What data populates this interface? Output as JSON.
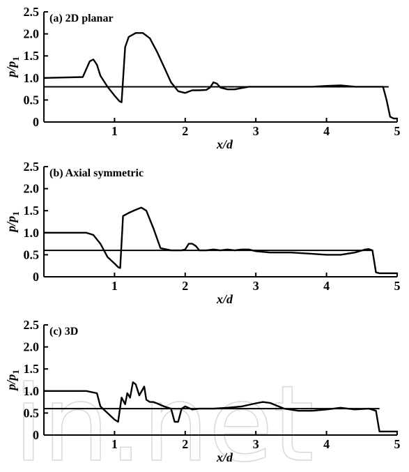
{
  "watermark": "in.net",
  "chart_data": [
    {
      "type": "line",
      "title": "(a) 2D planar",
      "xlabel": "x/d",
      "ylabel": "p/p1",
      "xlim": [
        0,
        5
      ],
      "ylim": [
        0,
        2.5
      ],
      "xticks": [
        "1",
        "2",
        "3",
        "4",
        "5"
      ],
      "yticks": [
        "0",
        "0.5",
        "1.0",
        "1.5",
        "2.0",
        "2.5"
      ],
      "grid": false,
      "reference_line": {
        "y": 0.8,
        "x_range": [
          0,
          4.88
        ]
      },
      "series": [
        {
          "x": [
            0,
            0.55,
            0.6,
            0.65,
            0.7,
            0.75,
            0.8,
            0.9,
            1.0,
            1.07,
            1.1,
            1.15,
            1.2,
            1.3,
            1.4,
            1.5,
            1.6,
            1.7,
            1.8,
            1.9,
            2.0,
            2.1,
            2.2,
            2.3,
            2.35,
            2.4,
            2.45,
            2.5,
            2.6,
            2.7,
            2.8,
            2.9,
            3.0,
            3.2,
            3.4,
            3.6,
            3.8,
            4.0,
            4.2,
            4.4,
            4.6,
            4.8,
            4.85,
            4.9,
            4.95,
            5.0
          ],
          "y": [
            1.0,
            1.02,
            1.2,
            1.38,
            1.42,
            1.3,
            1.05,
            0.8,
            0.6,
            0.47,
            0.45,
            1.7,
            1.93,
            2.02,
            2.02,
            1.9,
            1.6,
            1.25,
            0.9,
            0.7,
            0.66,
            0.72,
            0.72,
            0.73,
            0.78,
            0.9,
            0.87,
            0.78,
            0.74,
            0.74,
            0.77,
            0.8,
            0.8,
            0.8,
            0.8,
            0.8,
            0.8,
            0.82,
            0.83,
            0.8,
            0.8,
            0.8,
            0.5,
            0.12,
            0.08,
            0.08
          ]
        }
      ]
    },
    {
      "type": "line",
      "title": "(b) Axial symmetric",
      "xlabel": "x/d",
      "ylabel": "p/p1",
      "xlim": [
        0,
        5
      ],
      "ylim": [
        0,
        2.5
      ],
      "xticks": [
        "1",
        "2",
        "3",
        "4",
        "5"
      ],
      "yticks": [
        "0",
        "0.5",
        "1.0",
        "1.5",
        "2.0",
        "2.5"
      ],
      "grid": false,
      "reference_line": {
        "y": 0.6,
        "x_range": [
          0,
          4.65
        ]
      },
      "series": [
        {
          "x": [
            0,
            0.6,
            0.7,
            0.8,
            0.9,
            1.0,
            1.05,
            1.08,
            1.12,
            1.2,
            1.3,
            1.38,
            1.45,
            1.55,
            1.65,
            1.8,
            1.95,
            2.0,
            2.05,
            2.1,
            2.15,
            2.2,
            2.3,
            2.4,
            2.5,
            2.6,
            2.7,
            2.8,
            2.9,
            3.0,
            3.2,
            3.5,
            3.8,
            4.0,
            4.2,
            4.4,
            4.55,
            4.6,
            4.65,
            4.7,
            4.75,
            4.8,
            5.0
          ],
          "y": [
            1.0,
            1.0,
            0.95,
            0.75,
            0.45,
            0.3,
            0.22,
            0.2,
            1.38,
            1.45,
            1.52,
            1.57,
            1.5,
            1.1,
            0.65,
            0.6,
            0.6,
            0.62,
            0.75,
            0.75,
            0.7,
            0.6,
            0.6,
            0.62,
            0.6,
            0.62,
            0.6,
            0.62,
            0.62,
            0.58,
            0.55,
            0.55,
            0.52,
            0.5,
            0.5,
            0.55,
            0.62,
            0.63,
            0.6,
            0.1,
            0.08,
            0.08,
            0.08
          ]
        }
      ]
    },
    {
      "type": "line",
      "title": "(c) 3D",
      "xlabel": "x/d",
      "ylabel": "p/p1",
      "xlim": [
        0,
        5
      ],
      "ylim": [
        0,
        2.5
      ],
      "xticks": [
        "1",
        "2",
        "3",
        "4",
        "5"
      ],
      "yticks": [
        "0",
        "0.5",
        "1.0",
        "1.5",
        "2.0",
        "2.5"
      ],
      "grid": false,
      "reference_line": {
        "y": 0.6,
        "x_range": [
          0,
          4.75
        ]
      },
      "series": [
        {
          "x": [
            0,
            0.6,
            0.75,
            0.8,
            0.9,
            1.0,
            1.05,
            1.1,
            1.15,
            1.18,
            1.22,
            1.26,
            1.3,
            1.35,
            1.42,
            1.45,
            1.5,
            1.55,
            1.6,
            1.7,
            1.8,
            1.85,
            1.9,
            1.95,
            2.0,
            2.1,
            2.2,
            2.4,
            2.6,
            2.8,
            3.0,
            3.1,
            3.2,
            3.4,
            3.6,
            3.8,
            4.0,
            4.2,
            4.4,
            4.6,
            4.7,
            4.75,
            4.8,
            5.0
          ],
          "y": [
            1.0,
            1.0,
            0.95,
            0.65,
            0.5,
            0.35,
            0.3,
            0.85,
            0.7,
            0.95,
            0.85,
            1.2,
            1.15,
            0.9,
            1.1,
            0.8,
            0.75,
            0.75,
            0.72,
            0.65,
            0.6,
            0.3,
            0.3,
            0.6,
            0.65,
            0.58,
            0.6,
            0.6,
            0.62,
            0.65,
            0.72,
            0.75,
            0.73,
            0.6,
            0.55,
            0.55,
            0.58,
            0.62,
            0.58,
            0.6,
            0.55,
            0.08,
            0.08,
            0.08
          ]
        }
      ]
    }
  ]
}
